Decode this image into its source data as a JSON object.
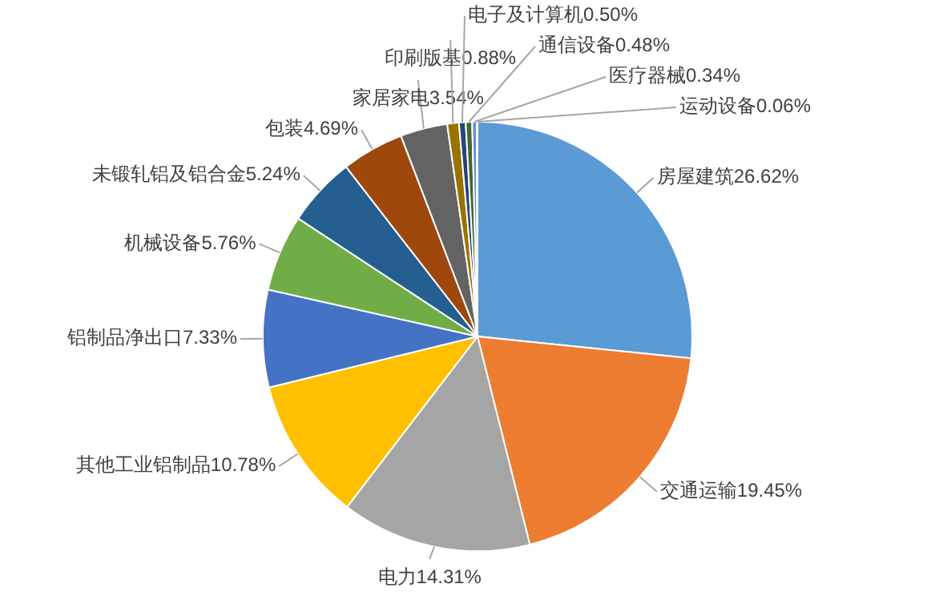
{
  "chart_data": {
    "type": "pie",
    "categories": [
      "房屋建筑",
      "交通运输",
      "电力",
      "其他工业铝制品",
      "铝制品净出口",
      "机械设备",
      "未锻轧铝及铝合金",
      "包装",
      "家居家电",
      "印刷版基",
      "电子及计算机",
      "通信设备",
      "医疗器械",
      "运动设备"
    ],
    "values": [
      26.62,
      19.45,
      14.31,
      10.78,
      7.33,
      5.76,
      5.24,
      4.69,
      3.54,
      0.88,
      0.5,
      0.48,
      0.34,
      0.06
    ],
    "value_labels": [
      "26.62%",
      "19.45%",
      "14.31%",
      "10.78%",
      "7.33%",
      "5.76%",
      "5.24%",
      "4.69%",
      "3.54%",
      "0.88%",
      "0.50%",
      "0.48%",
      "0.34%",
      "0.06%"
    ],
    "colors": [
      "#5b9bd5",
      "#ed7d31",
      "#a5a5a5",
      "#ffc000",
      "#4472c4",
      "#70ad47",
      "#255e91",
      "#9e480e",
      "#636363",
      "#997300",
      "#264478",
      "#43682b",
      "#698ed0",
      "#f1975a"
    ]
  }
}
